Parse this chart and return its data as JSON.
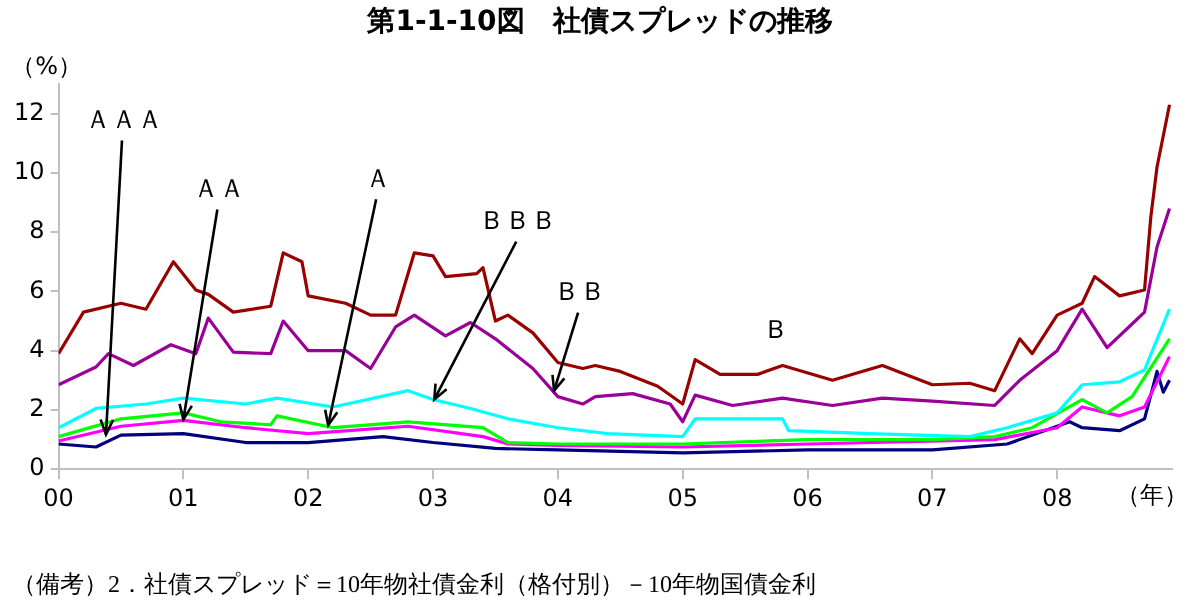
{
  "chart_data": {
    "type": "line",
    "title": "第1-1-10図　社債スプレッドの推移",
    "ylabel": "（%）",
    "xlabel": "（年）",
    "xlim": [
      2000,
      2008.92
    ],
    "ylim": [
      0,
      13
    ],
    "xticks": [
      {
        "value": 2000,
        "label": "00"
      },
      {
        "value": 2001,
        "label": "01"
      },
      {
        "value": 2002,
        "label": "02"
      },
      {
        "value": 2003,
        "label": "03"
      },
      {
        "value": 2004,
        "label": "04"
      },
      {
        "value": 2005,
        "label": "05"
      },
      {
        "value": 2006,
        "label": "06"
      },
      {
        "value": 2007,
        "label": "07"
      },
      {
        "value": 2008,
        "label": "08"
      }
    ],
    "yticks": [
      0,
      2,
      4,
      6,
      8,
      10,
      12
    ],
    "grid": false,
    "legend": false,
    "marker": "none",
    "line_style": "solid",
    "series": [
      {
        "color": "#990000",
        "x": [
          2000,
          2000.2,
          2000.5,
          2000.7,
          2000.92,
          2001.1,
          2001.2,
          2001.4,
          2001.7,
          2001.8,
          2001.95,
          2002.0,
          2002.3,
          2002.5,
          2002.7,
          2002.85,
          2003.0,
          2003.1,
          2003.35,
          2003.4,
          2003.5,
          2003.6,
          2003.8,
          2004.0,
          2004.2,
          2004.3,
          2004.5,
          2004.8,
          2005.0,
          2005.1,
          2005.3,
          2005.6,
          2005.8,
          2006.2,
          2006.6,
          2007.0,
          2007.3,
          2007.5,
          2007.7,
          2007.8,
          2008.0,
          2008.2,
          2008.3,
          2008.5,
          2008.7,
          2008.75,
          2008.8,
          2008.9
        ],
        "values": [
          3.9,
          5.3,
          5.6,
          5.4,
          7.0,
          6.05,
          5.9,
          5.3,
          5.5,
          7.3,
          7.0,
          5.85,
          5.6,
          5.2,
          5.2,
          7.3,
          7.2,
          6.5,
          6.6,
          6.8,
          5.0,
          5.2,
          4.6,
          3.6,
          3.4,
          3.5,
          3.3,
          2.8,
          2.2,
          3.7,
          3.2,
          3.2,
          3.5,
          3.0,
          3.5,
          2.85,
          2.9,
          2.65,
          4.4,
          3.9,
          5.2,
          5.6,
          6.5,
          5.85,
          6.05,
          8.5,
          10.2,
          12.3
        ]
      },
      {
        "color": "#990099",
        "x": [
          2000,
          2000.3,
          2000.4,
          2000.6,
          2000.9,
          2001.1,
          2001.2,
          2001.4,
          2001.7,
          2001.8,
          2002.0,
          2002.3,
          2002.5,
          2002.7,
          2002.85,
          2003.1,
          2003.3,
          2003.5,
          2003.8,
          2004.0,
          2004.2,
          2004.3,
          2004.6,
          2004.9,
          2005.0,
          2005.1,
          2005.4,
          2005.8,
          2006.2,
          2006.6,
          2007.0,
          2007.5,
          2007.7,
          2008.0,
          2008.2,
          2008.4,
          2008.6,
          2008.7,
          2008.8,
          2008.9
        ],
        "values": [
          2.85,
          3.45,
          3.9,
          3.5,
          4.2,
          3.9,
          5.1,
          3.95,
          3.9,
          5.0,
          4.0,
          4.0,
          3.4,
          4.8,
          5.2,
          4.5,
          4.95,
          4.4,
          3.4,
          2.45,
          2.2,
          2.45,
          2.55,
          2.2,
          1.6,
          2.5,
          2.15,
          2.4,
          2.15,
          2.4,
          2.3,
          2.15,
          3.0,
          4.0,
          5.4,
          4.1,
          4.9,
          5.3,
          7.5,
          8.8
        ]
      },
      {
        "color": "#00ffff",
        "x": [
          2000,
          2000.3,
          2000.7,
          2001.0,
          2001.5,
          2001.75,
          2002.2,
          2002.8,
          2003.0,
          2003.3,
          2003.6,
          2004.0,
          2004.4,
          2005.0,
          2005.1,
          2005.8,
          2005.85,
          2006.5,
          2007.3,
          2007.6,
          2008.0,
          2008.2,
          2008.5,
          2008.7,
          2008.9
        ],
        "values": [
          1.4,
          2.05,
          2.2,
          2.4,
          2.2,
          2.4,
          2.1,
          2.65,
          2.35,
          2.05,
          1.7,
          1.4,
          1.2,
          1.1,
          1.7,
          1.7,
          1.3,
          1.2,
          1.1,
          1.4,
          1.9,
          2.85,
          2.95,
          3.35,
          5.4
        ]
      },
      {
        "color": "#00ff00",
        "x": [
          2000,
          2000.5,
          2001.0,
          2001.3,
          2001.7,
          2001.75,
          2002.2,
          2002.8,
          2003.4,
          2003.6,
          2004.0,
          2005.0,
          2006.0,
          2007.0,
          2007.5,
          2007.8,
          2008.2,
          2008.4,
          2008.6,
          2008.9
        ],
        "values": [
          1.1,
          1.7,
          1.9,
          1.6,
          1.5,
          1.8,
          1.4,
          1.6,
          1.4,
          0.9,
          0.85,
          0.85,
          1.0,
          1.0,
          1.1,
          1.4,
          2.35,
          1.9,
          2.45,
          4.4
        ]
      },
      {
        "color": "#ff00ff",
        "x": [
          2000,
          2000.5,
          2001.0,
          2001.5,
          2002.0,
          2002.8,
          2003.4,
          2003.6,
          2004.0,
          2005.0,
          2006.0,
          2007.5,
          2008.0,
          2008.2,
          2008.5,
          2008.7,
          2008.9
        ],
        "values": [
          0.95,
          1.45,
          1.65,
          1.4,
          1.2,
          1.45,
          1.1,
          0.85,
          0.8,
          0.75,
          0.85,
          1.0,
          1.4,
          2.1,
          1.8,
          2.1,
          3.8
        ]
      },
      {
        "color": "#000080",
        "x": [
          2000,
          2000.3,
          2000.5,
          2001.0,
          2001.5,
          2002.0,
          2002.6,
          2003.0,
          2003.5,
          2004.0,
          2005.0,
          2006.0,
          2007.0,
          2007.6,
          2008.1,
          2008.2,
          2008.5,
          2008.7,
          2008.8,
          2008.85,
          2008.9
        ],
        "values": [
          0.85,
          0.75,
          1.15,
          1.2,
          0.9,
          0.9,
          1.1,
          0.9,
          0.7,
          0.65,
          0.55,
          0.65,
          0.65,
          0.85,
          1.6,
          1.4,
          1.3,
          1.7,
          3.3,
          2.6,
          3.0
        ]
      }
    ],
    "annotations": [
      {
        "text": "ＡＡＡ",
        "x": 2000.38,
        "y": 1.17
      },
      {
        "text": "ＡＡ",
        "x": 2001.0,
        "y": 1.68
      },
      {
        "text": "Ａ",
        "x": 2002.16,
        "y": 1.48
      },
      {
        "text": "ＢＢＢ",
        "x": 2003.01,
        "y": 2.35
      },
      {
        "text": "ＢＢ",
        "x": 2003.97,
        "y": 2.65
      },
      "Ｂ",
      "（備考）2．社債スプレッド＝10年物社債金利（格付別）－10年物国債金利"
    ]
  }
}
